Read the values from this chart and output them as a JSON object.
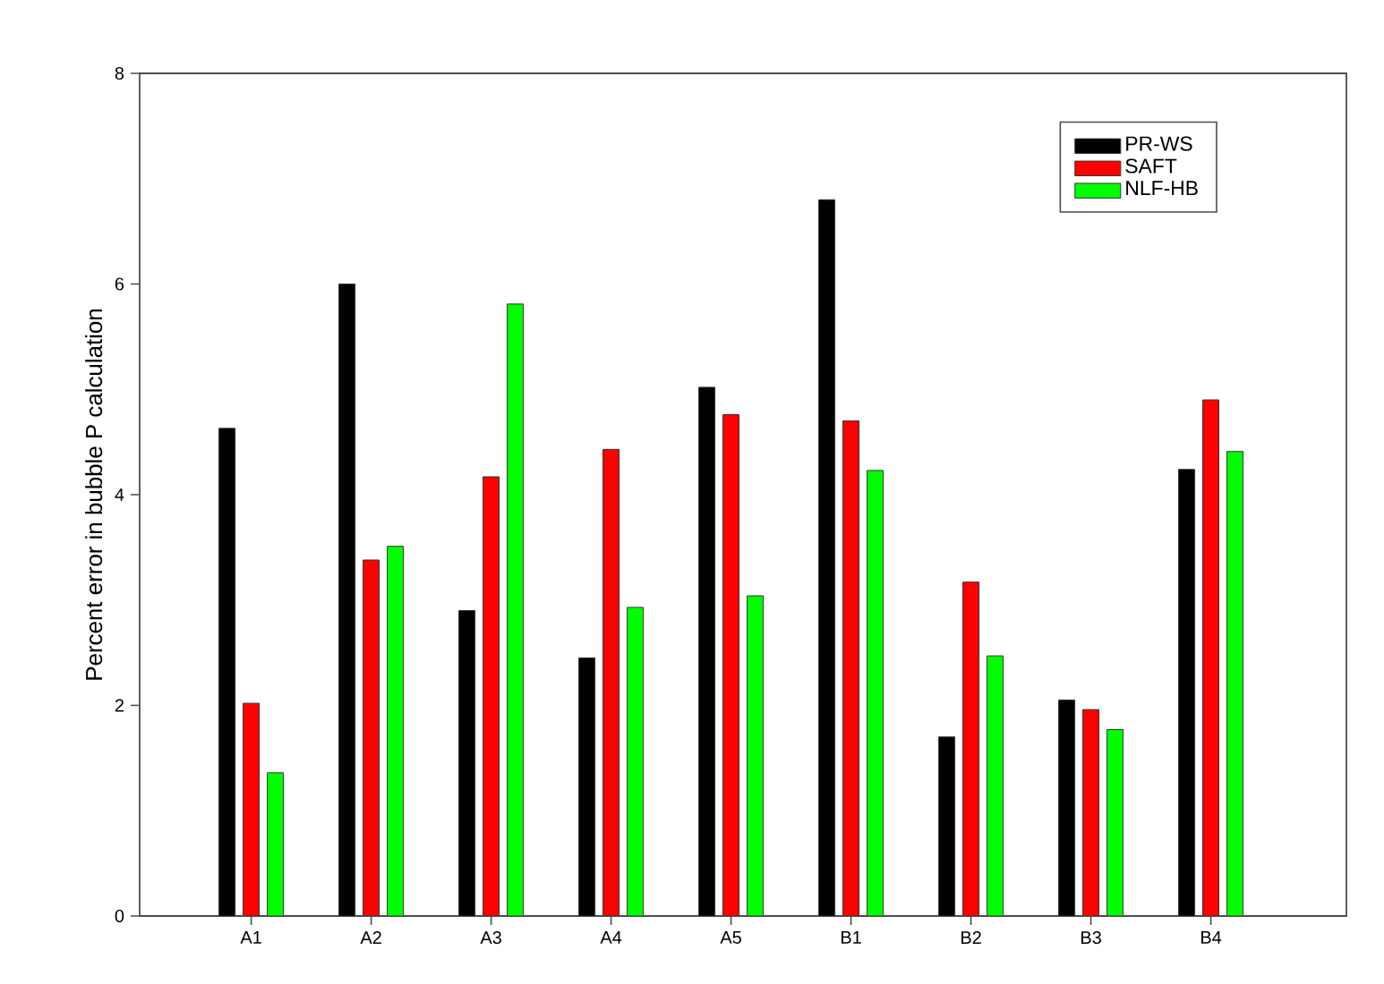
{
  "chart_data": {
    "type": "bar",
    "ylabel": "Percent error in bubble P calculation",
    "categories": [
      "A1",
      "A2",
      "A3",
      "A4",
      "A5",
      "B1",
      "B2",
      "B3",
      "B4"
    ],
    "series": [
      {
        "name": "PR-WS",
        "color": "#000000",
        "values": [
          4.63,
          6.0,
          2.9,
          2.45,
          5.02,
          6.8,
          1.7,
          2.05,
          4.24
        ]
      },
      {
        "name": "SAFT",
        "color": "#ff0000",
        "values": [
          2.02,
          3.38,
          4.17,
          4.43,
          4.76,
          4.7,
          3.17,
          1.96,
          4.9
        ]
      },
      {
        "name": "NLF-HB",
        "color": "#00ff00",
        "values": [
          1.36,
          3.51,
          5.81,
          2.93,
          3.04,
          4.23,
          2.47,
          1.77,
          4.41
        ]
      }
    ],
    "ylim": [
      0,
      8
    ],
    "yticks": [
      0,
      2,
      4,
      6,
      8
    ],
    "legend": "top right"
  }
}
